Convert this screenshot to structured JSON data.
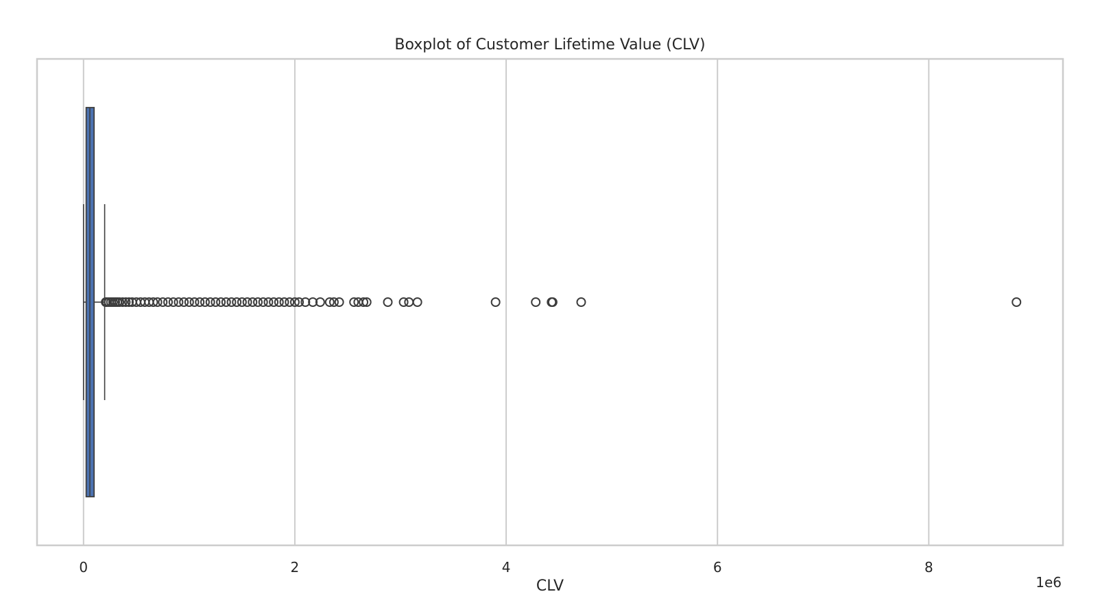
{
  "chart_data": {
    "type": "boxplot",
    "orientation": "horizontal",
    "title": "Boxplot of Customer Lifetime Value (CLV)",
    "xlabel": "CLV",
    "ylabel": "",
    "x_offset_label": "1e6",
    "x_ticks": [
      0,
      2,
      4,
      6,
      8
    ],
    "x_tick_labels": [
      "0",
      "2",
      "4",
      "6",
      "8"
    ],
    "xlim": [
      -0.44,
      9.27
    ],
    "x_unit_scale": 1000000,
    "grid": "vertical",
    "box": {
      "whisker_low": 0.0,
      "q1": 0.025,
      "median": 0.06,
      "q3": 0.1,
      "whisker_high": 0.2
    },
    "outliers": [
      0.21,
      0.22,
      0.24,
      0.26,
      0.28,
      0.3,
      0.32,
      0.34,
      0.37,
      0.4,
      0.43,
      0.46,
      0.5,
      0.54,
      0.58,
      0.62,
      0.66,
      0.7,
      0.75,
      0.8,
      0.85,
      0.9,
      0.95,
      1.0,
      1.05,
      1.1,
      1.15,
      1.2,
      1.25,
      1.3,
      1.35,
      1.4,
      1.45,
      1.5,
      1.55,
      1.6,
      1.65,
      1.7,
      1.75,
      1.8,
      1.85,
      1.9,
      1.95,
      2.0,
      2.04,
      2.1,
      2.17,
      2.24,
      2.33,
      2.37,
      2.42,
      2.56,
      2.6,
      2.65,
      2.68,
      2.88,
      3.03,
      3.08,
      3.16,
      3.9,
      4.28,
      4.43,
      4.44,
      4.71,
      8.83
    ],
    "colors": {
      "box_fill": "#4c72b0",
      "line": "#3d3d3d",
      "grid": "#cccccc",
      "frame": "#cccccc"
    }
  }
}
